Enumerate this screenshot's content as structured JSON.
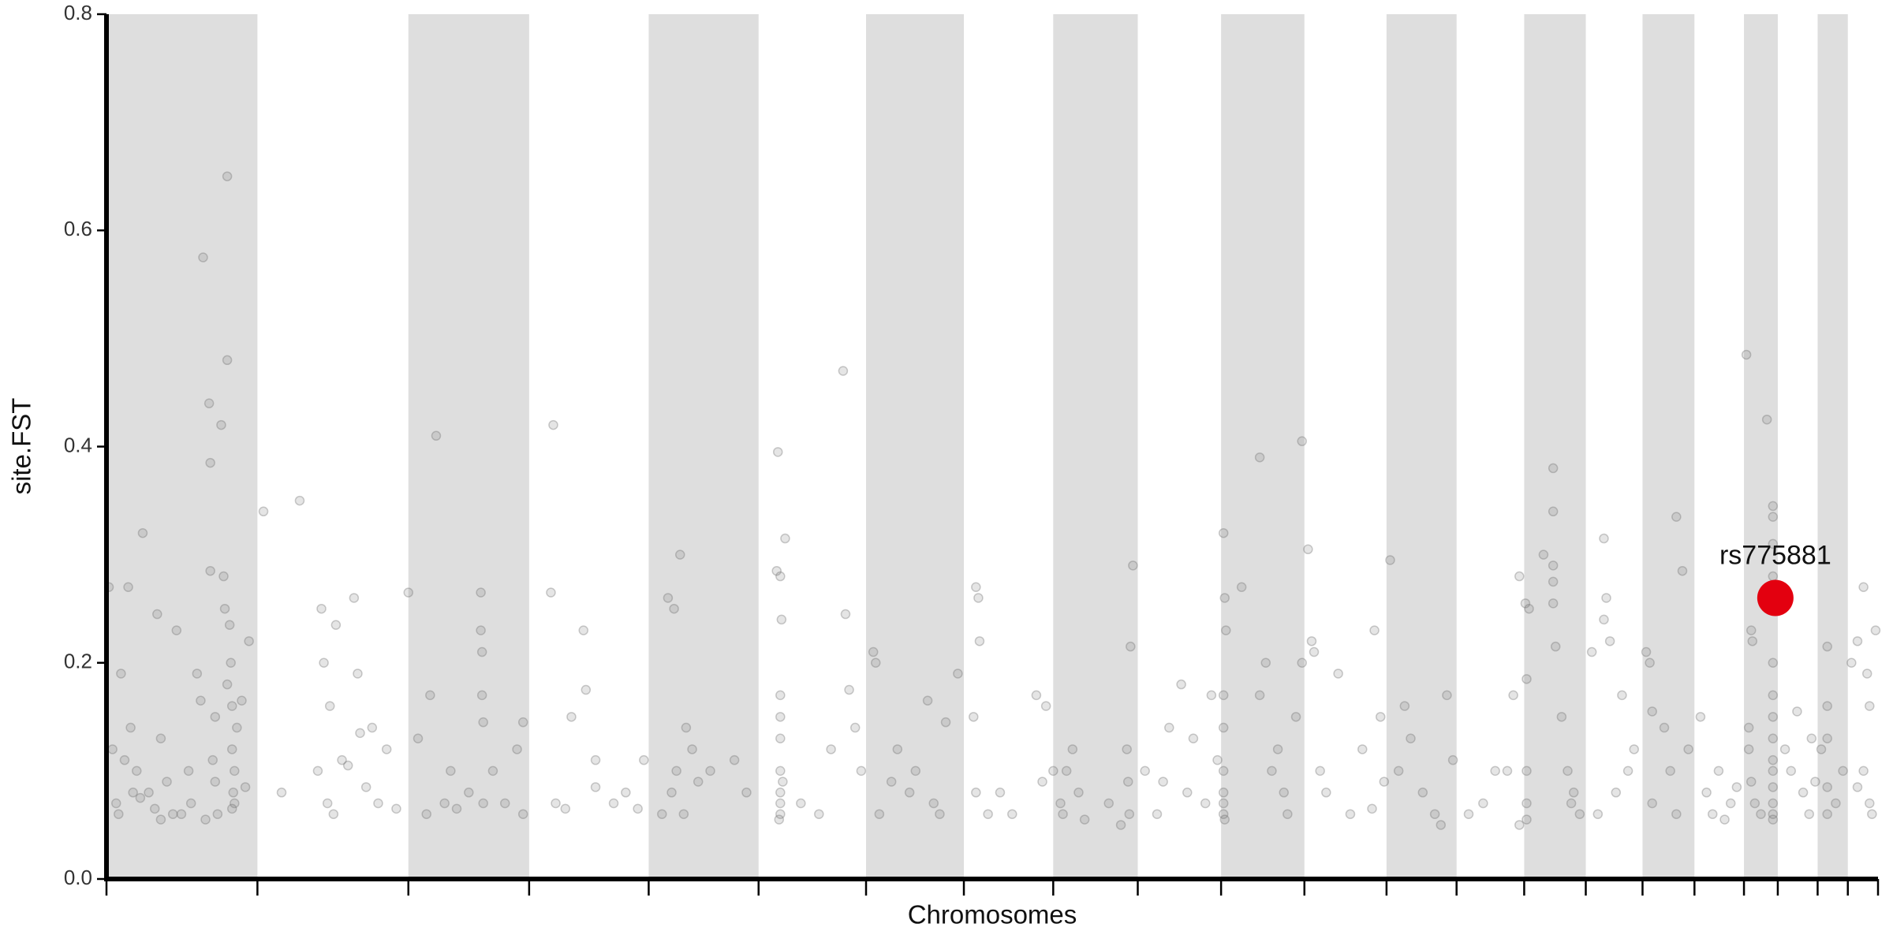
{
  "chart_data": {
    "type": "scatter",
    "x_label": "Chromosomes",
    "y_label": "site.FST",
    "xlim": [
      0,
      1467
    ],
    "xticks": [
      0,
      125,
      250,
      350,
      449,
      540,
      629,
      710,
      784,
      854,
      923,
      992,
      1060,
      1118,
      1174,
      1225,
      1272,
      1315,
      1356,
      1384,
      1417,
      1442,
      1467
    ],
    "ylim": [
      0,
      0.8
    ],
    "yticks": [
      {
        "value": 0,
        "label": "0.0"
      },
      0.2,
      0.4,
      0.6,
      0.8
    ],
    "band_color": "#dedede",
    "series": [
      {
        "color": "#6e6e6e",
        "x": [
          2,
          5,
          8,
          12,
          18,
          20,
          25,
          30,
          35,
          42,
          45,
          50,
          58,
          62,
          68,
          75,
          78,
          80,
          85,
          86,
          86,
          88,
          90,
          92,
          95,
          97,
          98,
          100,
          100,
          102,
          103,
          104,
          104,
          105,
          106,
          106,
          108,
          112,
          115,
          118,
          40,
          45,
          10,
          15,
          22,
          28,
          55,
          70,
          82,
          90,
          100,
          104,
          130,
          145,
          160,
          175,
          178,
          180,
          183,
          185,
          188,
          195,
          205,
          208,
          210,
          215,
          220,
          225,
          232,
          240,
          190,
          200,
          250,
          258,
          265,
          268,
          273,
          280,
          290,
          300,
          310,
          310,
          311,
          311,
          312,
          312,
          320,
          330,
          340,
          345,
          345,
          285,
          370,
          368,
          372,
          380,
          395,
          397,
          405,
          405,
          420,
          430,
          440,
          385,
          445,
          465,
          470,
          475,
          468,
          472,
          478,
          480,
          485,
          490,
          460,
          500,
          520,
          530,
          555,
          558,
          559,
          556,
          562,
          558,
          558,
          558,
          558,
          558,
          558,
          558,
          557,
          560,
          575,
          590,
          600,
          610,
          612,
          615,
          620,
          625,
          635,
          637,
          640,
          650,
          655,
          665,
          680,
          685,
          695,
          705,
          690,
          670,
          720,
          722,
          723,
          718,
          720,
          730,
          750,
          770,
          778,
          775,
          784,
          740,
          790,
          792,
          795,
          800,
          805,
          810,
          830,
          850,
          848,
          845,
          846,
          847,
          840,
          860,
          870,
          880,
          890,
          900,
          910,
          915,
          895,
          920,
          875,
          925,
          926,
          927,
          925,
          925,
          925,
          925,
          925,
          925,
          926,
          940,
          955,
          955,
          960,
          965,
          975,
          985,
          990,
          978,
          970,
          990,
          995,
          998,
          1000,
          1005,
          1010,
          1020,
          1030,
          1040,
          1050,
          1055,
          1058,
          1048,
          1063,
          1070,
          1075,
          1080,
          1090,
          1100,
          1110,
          1115,
          1105,
          1140,
          1150,
          1160,
          1165,
          1170,
          1128,
          1170,
          1175,
          1178,
          1176,
          1176,
          1176,
          1176,
          1190,
          1198,
          1198,
          1198,
          1198,
          1198,
          1200,
          1210,
          1213,
          1215,
          1220,
          1205,
          1230,
          1240,
          1242,
          1240,
          1245,
          1255,
          1260,
          1250,
          1235,
          1265,
          1275,
          1278,
          1280,
          1290,
          1295,
          1300,
          1305,
          1310,
          1280,
          1300,
          1320,
          1325,
          1330,
          1335,
          1345,
          1350,
          1340,
          1358,
          1362,
          1363,
          1360,
          1360,
          1362,
          1365,
          1370,
          1375,
          1380,
          1380,
          1380,
          1380,
          1380,
          1380,
          1380,
          1380,
          1380,
          1380,
          1380,
          1380,
          1380,
          1380,
          1390,
          1395,
          1400,
          1405,
          1410,
          1412,
          1415,
          1420,
          1425,
          1425,
          1425,
          1425,
          1425,
          1432,
          1438,
          1445,
          1450,
          1455,
          1458,
          1460,
          1455,
          1460,
          1462,
          1450,
          1465
        ],
        "values": [
          0.27,
          0.12,
          0.07,
          0.19,
          0.27,
          0.14,
          0.1,
          0.32,
          0.08,
          0.245,
          0.13,
          0.09,
          0.23,
          0.06,
          0.1,
          0.19,
          0.165,
          0.575,
          0.44,
          0.385,
          0.285,
          0.11,
          0.09,
          0.06,
          0.42,
          0.28,
          0.25,
          0.48,
          0.65,
          0.235,
          0.2,
          0.16,
          0.12,
          0.08,
          0.07,
          0.1,
          0.14,
          0.165,
          0.085,
          0.22,
          0.065,
          0.055,
          0.06,
          0.11,
          0.08,
          0.075,
          0.06,
          0.07,
          0.055,
          0.15,
          0.18,
          0.065,
          0.34,
          0.08,
          0.35,
          0.1,
          0.25,
          0.2,
          0.07,
          0.16,
          0.06,
          0.11,
          0.26,
          0.19,
          0.135,
          0.085,
          0.14,
          0.07,
          0.12,
          0.065,
          0.235,
          0.105,
          0.265,
          0.13,
          0.06,
          0.17,
          0.41,
          0.07,
          0.065,
          0.08,
          0.265,
          0.23,
          0.21,
          0.17,
          0.145,
          0.07,
          0.1,
          0.07,
          0.12,
          0.145,
          0.06,
          0.1,
          0.42,
          0.265,
          0.07,
          0.065,
          0.23,
          0.175,
          0.11,
          0.085,
          0.07,
          0.08,
          0.065,
          0.15,
          0.11,
          0.26,
          0.25,
          0.3,
          0.08,
          0.1,
          0.06,
          0.14,
          0.12,
          0.09,
          0.06,
          0.1,
          0.11,
          0.08,
          0.285,
          0.28,
          0.24,
          0.395,
          0.315,
          0.17,
          0.15,
          0.13,
          0.1,
          0.08,
          0.07,
          0.06,
          0.055,
          0.09,
          0.07,
          0.06,
          0.12,
          0.47,
          0.245,
          0.175,
          0.14,
          0.1,
          0.21,
          0.2,
          0.06,
          0.09,
          0.12,
          0.08,
          0.165,
          0.07,
          0.145,
          0.19,
          0.06,
          0.1,
          0.27,
          0.26,
          0.22,
          0.15,
          0.08,
          0.06,
          0.06,
          0.17,
          0.16,
          0.09,
          0.1,
          0.08,
          0.07,
          0.06,
          0.1,
          0.12,
          0.08,
          0.055,
          0.07,
          0.29,
          0.215,
          0.12,
          0.09,
          0.06,
          0.05,
          0.1,
          0.06,
          0.14,
          0.18,
          0.13,
          0.07,
          0.17,
          0.08,
          0.11,
          0.09,
          0.32,
          0.26,
          0.23,
          0.17,
          0.14,
          0.1,
          0.08,
          0.07,
          0.06,
          0.055,
          0.27,
          0.39,
          0.17,
          0.2,
          0.1,
          0.08,
          0.15,
          0.2,
          0.06,
          0.12,
          0.405,
          0.305,
          0.22,
          0.21,
          0.1,
          0.08,
          0.19,
          0.06,
          0.12,
          0.23,
          0.15,
          0.09,
          0.065,
          0.295,
          0.1,
          0.16,
          0.13,
          0.08,
          0.06,
          0.17,
          0.11,
          0.05,
          0.07,
          0.1,
          0.1,
          0.17,
          0.05,
          0.06,
          0.28,
          0.255,
          0.25,
          0.185,
          0.1,
          0.07,
          0.055,
          0.3,
          0.38,
          0.34,
          0.29,
          0.275,
          0.255,
          0.215,
          0.1,
          0.07,
          0.08,
          0.06,
          0.15,
          0.21,
          0.24,
          0.26,
          0.315,
          0.22,
          0.17,
          0.1,
          0.08,
          0.06,
          0.12,
          0.21,
          0.2,
          0.155,
          0.14,
          0.1,
          0.335,
          0.285,
          0.12,
          0.07,
          0.06,
          0.15,
          0.08,
          0.06,
          0.1,
          0.07,
          0.085,
          0.055,
          0.485,
          0.23,
          0.22,
          0.14,
          0.12,
          0.09,
          0.07,
          0.06,
          0.425,
          0.345,
          0.335,
          0.31,
          0.28,
          0.2,
          0.17,
          0.15,
          0.13,
          0.11,
          0.1,
          0.085,
          0.07,
          0.06,
          0.055,
          0.12,
          0.1,
          0.155,
          0.08,
          0.06,
          0.13,
          0.09,
          0.12,
          0.215,
          0.16,
          0.13,
          0.085,
          0.06,
          0.07,
          0.1,
          0.2,
          0.22,
          0.27,
          0.19,
          0.16,
          0.1,
          0.07,
          0.06,
          0.085,
          0.23
        ]
      },
      {
        "color": "#e3000f",
        "x": [
          1382
        ],
        "values": [
          0.26
        ],
        "labels": [
          "rs775881"
        ]
      }
    ]
  }
}
